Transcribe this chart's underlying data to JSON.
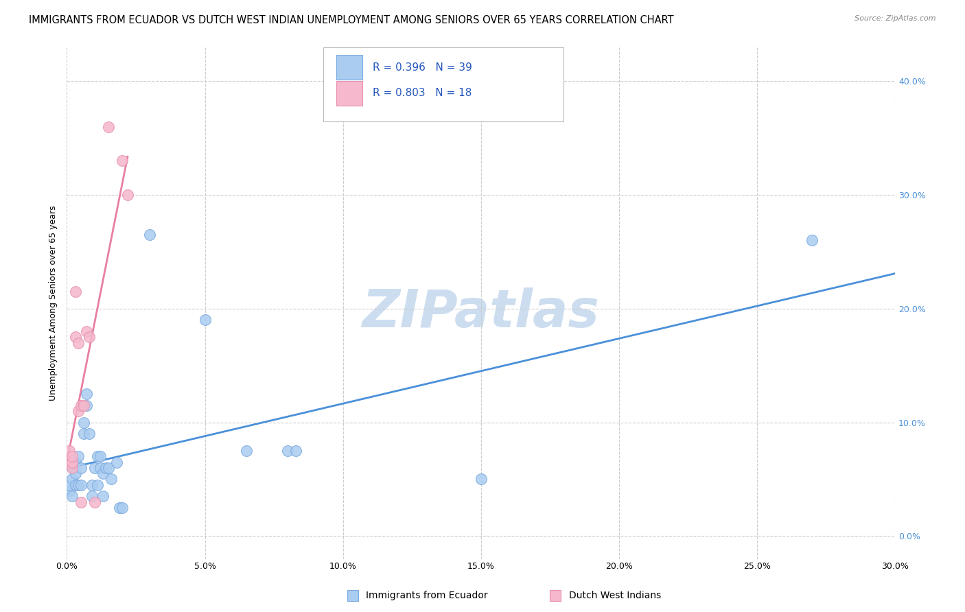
{
  "title": "IMMIGRANTS FROM ECUADOR VS DUTCH WEST INDIAN UNEMPLOYMENT AMONG SENIORS OVER 65 YEARS CORRELATION CHART",
  "source": "Source: ZipAtlas.com",
  "ylabel": "Unemployment Among Seniors over 65 years",
  "xlabel_ticks": [
    "0.0%",
    "5.0%",
    "10.0%",
    "15.0%",
    "20.0%",
    "25.0%",
    "30.0%"
  ],
  "ylabel_right_ticks": [
    "0.0%",
    "10.0%",
    "20.0%",
    "30.0%",
    "40.0%"
  ],
  "xlim": [
    0.0,
    0.3
  ],
  "ylim": [
    -0.02,
    0.43
  ],
  "watermark": "ZIPatlas",
  "blue_R": 0.396,
  "blue_N": 39,
  "pink_R": 0.803,
  "pink_N": 18,
  "blue_points": [
    [
      0.001,
      0.04
    ],
    [
      0.001,
      0.045
    ],
    [
      0.002,
      0.05
    ],
    [
      0.002,
      0.035
    ],
    [
      0.002,
      0.06
    ],
    [
      0.003,
      0.065
    ],
    [
      0.003,
      0.055
    ],
    [
      0.003,
      0.045
    ],
    [
      0.004,
      0.07
    ],
    [
      0.004,
      0.045
    ],
    [
      0.005,
      0.06
    ],
    [
      0.005,
      0.045
    ],
    [
      0.006,
      0.1
    ],
    [
      0.006,
      0.09
    ],
    [
      0.007,
      0.125
    ],
    [
      0.007,
      0.115
    ],
    [
      0.008,
      0.09
    ],
    [
      0.009,
      0.045
    ],
    [
      0.009,
      0.035
    ],
    [
      0.01,
      0.06
    ],
    [
      0.011,
      0.07
    ],
    [
      0.011,
      0.045
    ],
    [
      0.012,
      0.06
    ],
    [
      0.012,
      0.07
    ],
    [
      0.013,
      0.055
    ],
    [
      0.013,
      0.035
    ],
    [
      0.014,
      0.06
    ],
    [
      0.015,
      0.06
    ],
    [
      0.016,
      0.05
    ],
    [
      0.018,
      0.065
    ],
    [
      0.019,
      0.025
    ],
    [
      0.02,
      0.025
    ],
    [
      0.03,
      0.265
    ],
    [
      0.05,
      0.19
    ],
    [
      0.065,
      0.075
    ],
    [
      0.08,
      0.075
    ],
    [
      0.083,
      0.075
    ],
    [
      0.15,
      0.05
    ],
    [
      0.27,
      0.26
    ]
  ],
  "pink_points": [
    [
      0.001,
      0.065
    ],
    [
      0.001,
      0.075
    ],
    [
      0.002,
      0.06
    ],
    [
      0.002,
      0.065
    ],
    [
      0.002,
      0.07
    ],
    [
      0.003,
      0.215
    ],
    [
      0.003,
      0.175
    ],
    [
      0.004,
      0.17
    ],
    [
      0.004,
      0.11
    ],
    [
      0.005,
      0.115
    ],
    [
      0.005,
      0.03
    ],
    [
      0.006,
      0.115
    ],
    [
      0.007,
      0.18
    ],
    [
      0.008,
      0.175
    ],
    [
      0.01,
      0.03
    ],
    [
      0.015,
      0.36
    ],
    [
      0.02,
      0.33
    ],
    [
      0.022,
      0.3
    ]
  ],
  "blue_line_color": "#4a90d9",
  "pink_line_color": "#e87fa0",
  "blue_dot_color": "#aaccf0",
  "pink_dot_color": "#f5b8cc",
  "blue_dot_edge": "#7aaae0",
  "pink_dot_edge": "#e890b0",
  "legend_blue_label": "Immigrants from Ecuador",
  "legend_pink_label": "Dutch West Indians",
  "grid_color": "#cccccc",
  "background_color": "#ffffff",
  "title_fontsize": 10.5,
  "axis_label_fontsize": 9,
  "tick_fontsize": 9,
  "watermark_fontsize": 55,
  "watermark_color": "#ccddf0",
  "legend_text_color": "#2255bb"
}
